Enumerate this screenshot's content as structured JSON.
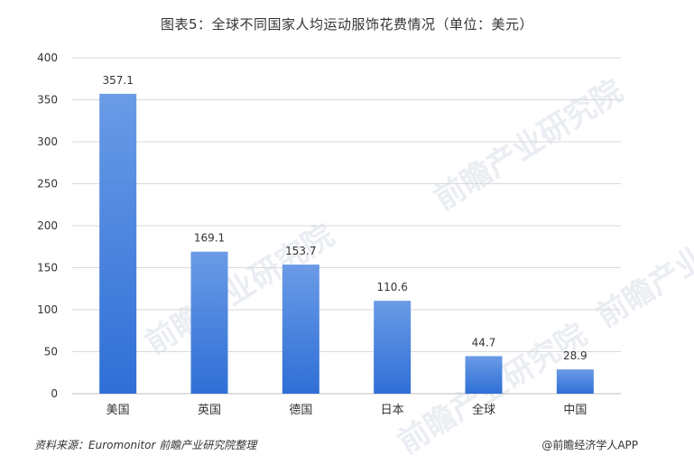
{
  "title": "图表5：全球不同国家人均运动服饰花费情况（单位：美元）",
  "footer": {
    "source": "资料来源：Euromonitor  前瞻产业研究院整理",
    "brand": "@前瞻经济学人APP"
  },
  "watermark": {
    "text": "前瞻产业研究院"
  },
  "colors": {
    "bar_top": "#6a9be6",
    "bar_bottom": "#2f6fd6",
    "grid": "#d9d9d9",
    "axis": "#bfbfbf",
    "text": "#333333"
  },
  "chart_data": {
    "type": "bar",
    "title": "图表5：全球不同国家人均运动服饰花费情况（单位：美元）",
    "categories": [
      "美国",
      "英国",
      "德国",
      "日本",
      "全球",
      "中国"
    ],
    "values": [
      357.1,
      169.1,
      153.7,
      110.6,
      44.7,
      28.9
    ],
    "data_labels": [
      "357.1",
      "169.1",
      "153.7",
      "110.6",
      "44.7",
      "28.9"
    ],
    "ylim": [
      0,
      400
    ],
    "yticks": [
      0,
      50,
      100,
      150,
      200,
      250,
      300,
      350,
      400
    ],
    "grid": true,
    "legend": "none",
    "xlabel": "",
    "ylabel": ""
  }
}
